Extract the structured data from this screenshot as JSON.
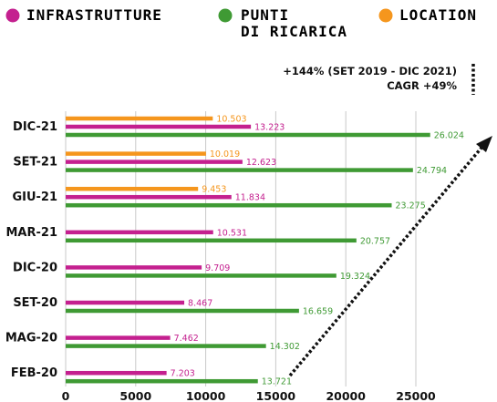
{
  "legend": [
    {
      "label": "INFRASTRUTTURE",
      "color": "#c4208f"
    },
    {
      "label_line1": "PUNTI",
      "label_line2": "DI RICARICA",
      "color": "#3f9a34"
    },
    {
      "label": "LOCATION",
      "color": "#f5961d"
    }
  ],
  "annotation": {
    "line1": "+144% (SET 2019 - DIC 2021)",
    "line2": "CAGR +49%"
  },
  "colors": {
    "infrastrutture": "#c4208f",
    "punti": "#3f9a34",
    "location": "#f5961d",
    "grid": "#c9c9c9",
    "arrow": "#111111"
  },
  "chart_data": {
    "type": "bar",
    "orientation": "horizontal",
    "categories": [
      "DIC-21",
      "SET-21",
      "GIU-21",
      "MAR-21",
      "DIC-20",
      "SET-20",
      "MAG-20",
      "FEB-20"
    ],
    "series": [
      {
        "name": "LOCATION",
        "values": [
          10503,
          10019,
          9453,
          null,
          null,
          null,
          null,
          null
        ],
        "labels": [
          "10.503",
          "10.019",
          "9.453",
          "",
          "",
          "",
          "",
          ""
        ]
      },
      {
        "name": "INFRASTRUTTURE",
        "values": [
          13223,
          12623,
          11834,
          10531,
          9709,
          8467,
          7462,
          7203
        ],
        "labels": [
          "13.223",
          "12.623",
          "11.834",
          "10.531",
          "9.709",
          "8.467",
          "7.462",
          "7.203"
        ]
      },
      {
        "name": "PUNTI DI RICARICA",
        "values": [
          26024,
          24794,
          23275,
          20757,
          19324,
          16659,
          14302,
          13721
        ],
        "labels": [
          "26.024",
          "24.794",
          "23.275",
          "20.757",
          "19.324",
          "16.659",
          "14.302",
          "13.721"
        ]
      }
    ],
    "xlim": [
      0,
      25000
    ],
    "xticks": [
      0,
      5000,
      10000,
      15000,
      20000,
      25000
    ],
    "xtick_labels": [
      "0",
      "5000",
      "10000",
      "15000",
      "20000",
      "25000"
    ],
    "grid": true,
    "legend_position": "top"
  }
}
